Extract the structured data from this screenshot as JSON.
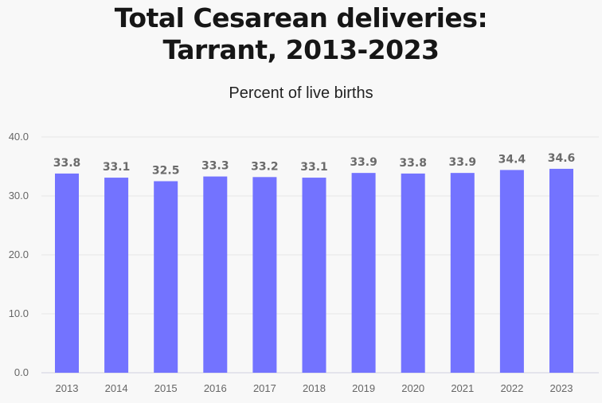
{
  "chart_data": {
    "type": "bar",
    "title_lines": [
      "Total Cesarean deliveries:",
      "Tarrant, 2013-2023"
    ],
    "subtitle": "Percent of live births",
    "categories": [
      "2013",
      "2014",
      "2015",
      "2016",
      "2017",
      "2018",
      "2019",
      "2020",
      "2021",
      "2022",
      "2023"
    ],
    "values": [
      33.8,
      33.1,
      32.5,
      33.3,
      33.2,
      33.1,
      33.9,
      33.8,
      33.9,
      34.4,
      34.6
    ],
    "value_labels": [
      "33.8",
      "33.1",
      "32.5",
      "33.3",
      "33.2",
      "33.1",
      "33.9",
      "33.8",
      "33.9",
      "34.4",
      "34.6"
    ],
    "ylim": [
      0,
      40
    ],
    "yticks": [
      "0.0",
      "10.0",
      "20.0",
      "30.0",
      "40.0"
    ],
    "grid": true,
    "bar_color": "#7373ff",
    "xlabel": "",
    "ylabel": ""
  }
}
